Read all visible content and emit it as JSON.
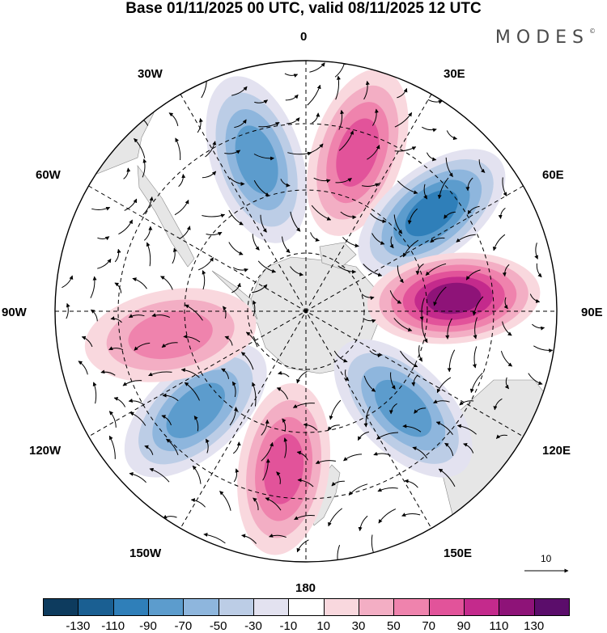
{
  "title": "Base 01/11/2025 00 UTC, valid 08/11/2025 12 UTC",
  "brand": "MODES",
  "brand_mark": "©",
  "longitude_labels": {
    "n0": "0",
    "e30": "30E",
    "e60": "60E",
    "e90": "90E",
    "e120": "120E",
    "e150": "150E",
    "s180": "180",
    "w150": "150W",
    "w120": "120W",
    "w90": "90W",
    "w60": "60W",
    "w30": "30W"
  },
  "reference_vector": {
    "label": "10"
  },
  "colorbar": {
    "ticks": [
      "-130",
      "-110",
      "-90",
      "-70",
      "-50",
      "-30",
      "-10",
      "10",
      "30",
      "50",
      "70",
      "90",
      "110",
      "130"
    ],
    "colors": [
      "#0d3b5e",
      "#1a5f92",
      "#2f7fb9",
      "#5c9ccd",
      "#8eb6dd",
      "#bccde6",
      "#e3e2f0",
      "#ffffff",
      "#f9d8de",
      "#f3aec4",
      "#ef83ad",
      "#e2539a",
      "#c42a8c",
      "#8e1378",
      "#5b0d6b"
    ]
  },
  "map_data": {
    "projection": "polar-stereographic-south",
    "anomaly_centers": [
      {
        "name": "blue-30W",
        "lon": -18,
        "lat": -42,
        "value": -90
      },
      {
        "name": "pink-20E",
        "lon": 18,
        "lat": -40,
        "value": 90
      },
      {
        "name": "blue-55E",
        "lon": 52,
        "lat": -42,
        "value": -110
      },
      {
        "name": "purple-90E",
        "lon": 85,
        "lat": -45,
        "value": 130
      },
      {
        "name": "blue-130E",
        "lon": 135,
        "lat": -48,
        "value": -90
      },
      {
        "name": "pink-170W",
        "lon": -172,
        "lat": -42,
        "value": 90
      },
      {
        "name": "blue-130W",
        "lon": -132,
        "lat": -45,
        "value": -90
      },
      {
        "name": "pink-95W",
        "lon": -100,
        "lat": -48,
        "value": 70
      }
    ]
  }
}
